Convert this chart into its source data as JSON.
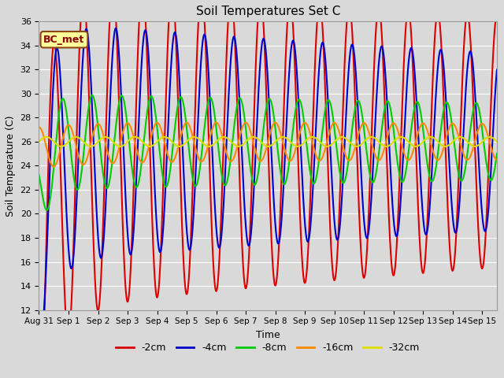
{
  "title": "Soil Temperatures Set C",
  "xlabel": "Time",
  "ylabel": "Soil Temperature (C)",
  "ylim": [
    12,
    36
  ],
  "annotation": "BC_met",
  "series_labels": [
    "-2cm",
    "-4cm",
    "-8cm",
    "-16cm",
    "-32cm"
  ],
  "series_colors": [
    "#dd0000",
    "#0000cc",
    "#00cc00",
    "#ff8800",
    "#dddd00"
  ],
  "xtick_labels": [
    "Aug 31",
    "Sep 1",
    "Sep 2",
    "Sep 3",
    "Sep 4",
    "Sep 5",
    "Sep 6",
    "Sep 7",
    "Sep 8",
    "Sep 9",
    "Sep 10",
    "Sep 11",
    "Sep 12",
    "Sep 13",
    "Sep 14",
    "Sep 15"
  ],
  "xtick_positions": [
    0,
    1,
    2,
    3,
    4,
    5,
    6,
    7,
    8,
    9,
    10,
    11,
    12,
    13,
    14,
    15
  ],
  "ytick_positions": [
    12,
    14,
    16,
    18,
    20,
    22,
    24,
    26,
    28,
    30,
    32,
    34,
    36
  ],
  "linewidth": 1.5,
  "figsize": [
    6.4,
    4.8
  ],
  "dpi": 100
}
